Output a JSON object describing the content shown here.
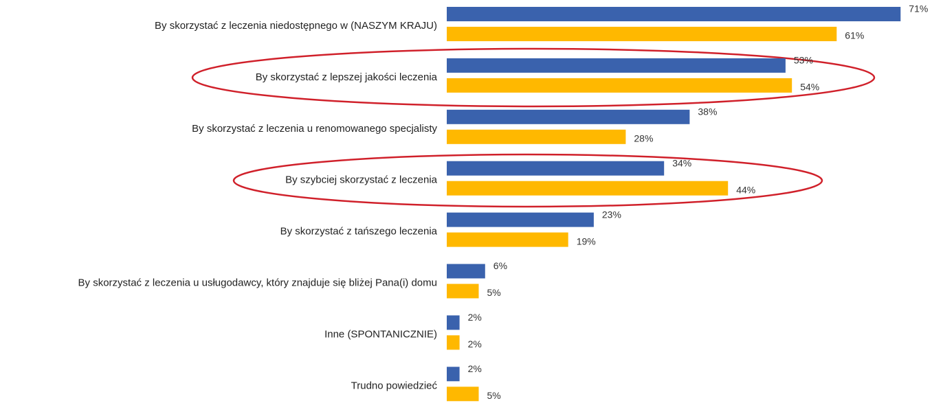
{
  "chart_data": {
    "type": "barh",
    "categories": [
      "By skorzystać z leczenia niedostępnego w (NASZYM KRAJU)",
      "By skorzystać z lepszej jakości leczenia",
      "By skorzystać z leczenia u renomowanego specjalisty",
      "By szybciej skorzystać z leczenia",
      "By skorzystać z tańszego leczenia",
      "By skorzystać z leczenia u usługodawcy, który znajduje się bliżej Pana(i) domu",
      "Inne (SPONTANICZNIE)",
      "Trudno powiedzieć"
    ],
    "series": [
      {
        "color": "#3a62ad",
        "values": [
          71,
          53,
          38,
          34,
          23,
          6,
          2,
          2
        ],
        "value_labels": [
          "71%",
          "53%",
          "38%",
          "34%",
          "23%",
          "6%",
          "2%",
          "2%"
        ]
      },
      {
        "color": "#ffb800",
        "values": [
          61,
          54,
          28,
          44,
          19,
          5,
          2,
          5
        ],
        "value_labels": [
          "61%",
          "54%",
          "28%",
          "44%",
          "19%",
          "5%",
          "2%",
          "5%"
        ]
      }
    ]
  }
}
